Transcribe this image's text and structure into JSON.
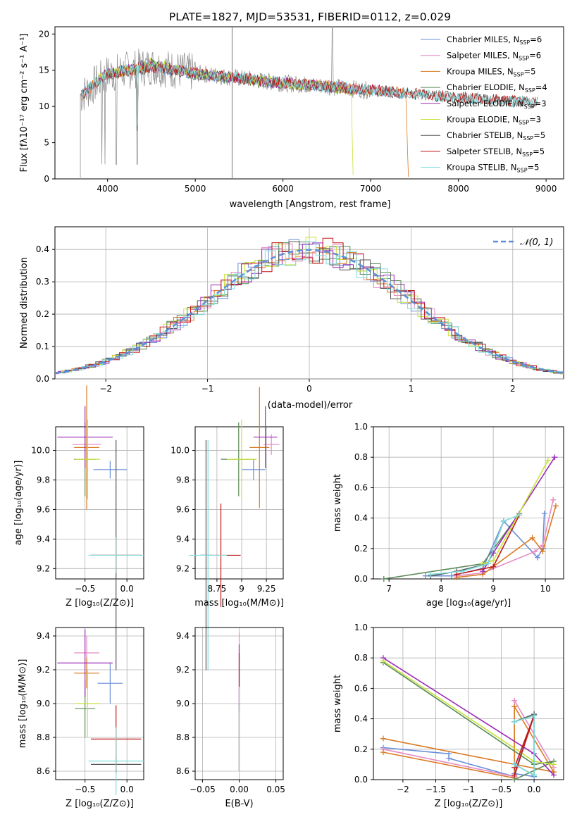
{
  "figure": {
    "title": "PLATE=1827, MJD=53531, FIBERID=0112, z=0.029"
  },
  "colors": {
    "Chabrier MILES": "#6a8fd8",
    "Salpeter MILES": "#e58ac4",
    "Kroupa MILES": "#d97a22",
    "Chabrier ELODIE": "#5a8a5a",
    "Salpeter ELODIE": "#9b2bb5",
    "Kroupa ELODIE": "#c8e23a",
    "Chabrier STELIB": "#555555",
    "Salpeter STELIB": "#c01818",
    "Kroupa STELIB": "#7fdede",
    "data": "#888888",
    "normal_curve": "#5a8fd8"
  },
  "chart_data": [
    {
      "id": "spectrum",
      "type": "line",
      "title": "PLATE=1827, MJD=53531, FIBERID=0112, z=0.029",
      "xlabel": "wavelength [Angstrom, rest frame]",
      "ylabel": "Flux [fλ10⁻¹⁷ erg cm⁻² s⁻¹ A⁻¹]",
      "xlim": [
        3400,
        9200
      ],
      "ylim": [
        0,
        21
      ],
      "xticks": [
        4000,
        5000,
        6000,
        7000,
        8000,
        9000
      ],
      "yticks": [
        0,
        5,
        10,
        15,
        20
      ],
      "grid": false,
      "legend": "top-right",
      "series": [
        {
          "name": "Chabrier MILES, N_SSP=6",
          "x": [
            3700,
            4000,
            4500,
            5000,
            5500,
            6000,
            6500,
            7000,
            7400
          ],
          "y": [
            11.5,
            14.5,
            15.5,
            14.5,
            13.8,
            13.2,
            12.8,
            12.2,
            11.8
          ]
        },
        {
          "name": "Salpeter MILES, N_SSP=6",
          "x": [
            3700,
            4000,
            4500,
            5000,
            5500,
            6000,
            6500,
            7000,
            7400
          ],
          "y": [
            11.4,
            14.6,
            15.6,
            14.6,
            13.9,
            13.3,
            12.9,
            12.3,
            11.9
          ]
        },
        {
          "name": "Kroupa MILES, N_SSP=5",
          "x": [
            3700,
            4000,
            4500,
            5000,
            5500,
            6000,
            6500,
            7000,
            7400,
            7430
          ],
          "y": [
            11.5,
            14.5,
            15.5,
            14.6,
            13.9,
            13.2,
            12.8,
            12.2,
            11.9,
            0
          ]
        },
        {
          "name": "Chabrier ELODIE, N_SSP=4",
          "x": [
            3900,
            4200,
            4500,
            5000,
            5500,
            6000,
            6500,
            6800
          ],
          "y": [
            14,
            15,
            15.8,
            14.4,
            13.7,
            13.1,
            12.7,
            12.3
          ]
        },
        {
          "name": "Salpeter ELODIE, N_SSP=3",
          "x": [
            3900,
            4200,
            4500,
            5000,
            5500,
            6000,
            6500,
            6800
          ],
          "y": [
            14.1,
            15.1,
            15.9,
            14.5,
            13.8,
            13.2,
            12.8,
            12.4
          ]
        },
        {
          "name": "Kroupa ELODIE, N_SSP=3",
          "x": [
            3900,
            4200,
            4500,
            5000,
            5500,
            6000,
            6500,
            6780,
            6800
          ],
          "y": [
            14,
            15,
            16,
            14.6,
            13.8,
            13.2,
            12.8,
            12.2,
            0
          ]
        },
        {
          "name": "Chabrier STELIB, N_SSP=5",
          "x": [
            3700,
            4000,
            4500,
            5000,
            6000,
            7000,
            8000,
            8500,
            8900
          ],
          "y": [
            11.6,
            14.4,
            15.4,
            14.5,
            13.2,
            12.2,
            11.2,
            10.8,
            10.6
          ]
        },
        {
          "name": "Salpeter STELIB, N_SSP=5",
          "x": [
            3700,
            4000,
            4500,
            5000,
            6000,
            7000,
            8000,
            8500,
            8900
          ],
          "y": [
            11.7,
            14.5,
            15.5,
            14.6,
            13.3,
            12.3,
            11.3,
            10.9,
            10.7
          ]
        },
        {
          "name": "Kroupa STELIB, N_SSP=5",
          "x": [
            3700,
            4000,
            4500,
            5000,
            6000,
            7000,
            8000,
            8500,
            8900
          ],
          "y": [
            11.8,
            14.6,
            15.6,
            14.7,
            13.3,
            12.3,
            11.2,
            10.8,
            10.5
          ]
        }
      ]
    },
    {
      "id": "residuals",
      "type": "line",
      "xlabel": "(data-model)/error",
      "ylabel": "Normed distribution",
      "xlim": [
        -2.5,
        2.5
      ],
      "ylim": [
        0,
        0.47
      ],
      "xticks": [
        -2,
        -1,
        0,
        1,
        2
      ],
      "yticks": [
        0.0,
        0.1,
        0.2,
        0.3,
        0.4
      ],
      "grid": true,
      "legend": "top-right",
      "legend_label": "𝒩(0, 1)",
      "normal": {
        "mean": 0,
        "sigma": 1
      }
    },
    {
      "id": "age_vs_Z",
      "type": "scatter",
      "xlabel": "Z [log₁₀(Z/Z⊙)]",
      "ylabel": "age  [log₁₀(age/yr)]",
      "xlim": [
        -0.85,
        0.2
      ],
      "ylim": [
        9.13,
        10.16
      ],
      "xticks": [
        -0.5,
        0.0
      ],
      "yticks": [
        9.2,
        9.4,
        9.6,
        9.8,
        10.0
      ],
      "grid": true,
      "points": [
        {
          "model": "Chabrier MILES",
          "x": -0.2,
          "xerr": 0.2,
          "y": 9.87,
          "yerr": 0.06
        },
        {
          "model": "Salpeter MILES",
          "x": -0.48,
          "xerr": 0.17,
          "y": 10.04,
          "yerr": 0.1
        },
        {
          "model": "Kroupa MILES",
          "x": -0.48,
          "xerr": 0.15,
          "y": 10.02,
          "yerr": 0.42
        },
        {
          "model": "Chabrier ELODIE",
          "x": -0.5,
          "xerr": 0.13,
          "y": 9.94,
          "yerr": 0.25
        },
        {
          "model": "Salpeter ELODIE",
          "x": -0.5,
          "xerr": 0.33,
          "y": 10.09,
          "yerr": 0.21
        },
        {
          "model": "Kroupa ELODIE",
          "x": -0.47,
          "xerr": 0.15,
          "y": 9.94,
          "yerr": 0.27
        },
        {
          "model": "Chabrier STELIB",
          "x": -0.13,
          "xerr": 0.3,
          "y": 9.29,
          "yerr": 0.78
        },
        {
          "model": "Salpeter STELIB",
          "x": -0.13,
          "xerr": 0.3,
          "y": 9.29,
          "yerr": 0.12
        },
        {
          "model": "Kroupa STELIB",
          "x": -0.13,
          "xerr": 0.33,
          "y": 9.29,
          "yerr": 0.12
        }
      ]
    },
    {
      "id": "age_vs_mass",
      "type": "scatter",
      "xlabel": "mass [log₁₀(M/M⊙)]",
      "ylabel": "",
      "xlim": [
        8.53,
        9.42
      ],
      "ylim": [
        9.13,
        10.16
      ],
      "xticks": [
        8.75,
        9.0,
        9.25
      ],
      "yticks": [
        9.2,
        9.4,
        9.6,
        9.8,
        10.0
      ],
      "grid": true,
      "points": [
        {
          "model": "Chabrier MILES",
          "x": 9.12,
          "xerr": 0.12,
          "y": 9.87,
          "yerr": 0.07
        },
        {
          "model": "Salpeter MILES",
          "x": 9.3,
          "xerr": 0.08,
          "y": 10.04,
          "yerr": 0.07
        },
        {
          "model": "Kroupa MILES",
          "x": 9.18,
          "xerr": 0.1,
          "y": 10.02,
          "yerr": 0.41
        },
        {
          "model": "Chabrier ELODIE",
          "x": 8.97,
          "xerr": 0.18,
          "y": 9.94,
          "yerr": 0.25
        },
        {
          "model": "Salpeter ELODIE",
          "x": 9.24,
          "xerr": 0.12,
          "y": 10.09,
          "yerr": 0.21
        },
        {
          "model": "Kroupa ELODIE",
          "x": 9.0,
          "xerr": 0.15,
          "y": 9.94,
          "yerr": 0.27
        },
        {
          "model": "Chabrier STELIB",
          "x": 8.64,
          "xerr": 0.06,
          "y": 9.29,
          "yerr": 0.78
        },
        {
          "model": "Salpeter STELIB",
          "x": 8.79,
          "xerr": 0.2,
          "y": 9.29,
          "yerr": 0.35
        },
        {
          "model": "Kroupa STELIB",
          "x": 8.66,
          "xerr": 0.19,
          "y": 9.29,
          "yerr": 0.78
        }
      ]
    },
    {
      "id": "massweight_vs_age",
      "type": "line",
      "xlabel": "age  [log₁₀(age/yr)]",
      "ylabel": "mass weight",
      "xlim": [
        6.7,
        10.35
      ],
      "ylim": [
        0,
        1
      ],
      "xticks": [
        7,
        8,
        9,
        10
      ],
      "yticks": [
        0.0,
        0.2,
        0.4,
        0.6,
        0.8,
        1.0
      ],
      "grid": true,
      "series": [
        {
          "model": "Chabrier MILES",
          "x": [
            7.7,
            8.2,
            8.8,
            9.2,
            9.85,
            9.95,
            9.98
          ],
          "y": [
            0.02,
            0.02,
            0.07,
            0.38,
            0.14,
            0.2,
            0.43
          ]
        },
        {
          "model": "Salpeter MILES",
          "x": [
            8.3,
            8.8,
            9.8,
            9.95,
            10.15
          ],
          "y": [
            0.02,
            0.04,
            0.18,
            0.22,
            0.52
          ]
        },
        {
          "model": "Kroupa MILES",
          "x": [
            8.3,
            8.8,
            9.75,
            9.95,
            10.2
          ],
          "y": [
            0.01,
            0.03,
            0.27,
            0.18,
            0.48
          ]
        },
        {
          "model": "Chabrier ELODIE",
          "x": [
            6.9,
            8.8,
            9.5
          ],
          "y": [
            0.0,
            0.1,
            0.43
          ]
        },
        {
          "model": "Salpeter ELODIE",
          "x": [
            8.8,
            9.0,
            10.18
          ],
          "y": [
            0.05,
            0.17,
            0.8
          ]
        },
        {
          "model": "Kroupa ELODIE",
          "x": [
            8.8,
            9.0,
            10.05
          ],
          "y": [
            0.1,
            0.12,
            0.78
          ]
        },
        {
          "model": "Chabrier STELIB",
          "x": [
            7.8,
            8.3,
            8.9,
            9.2
          ],
          "y": [
            0.02,
            0.05,
            0.1,
            0.38
          ]
        },
        {
          "model": "Salpeter STELIB",
          "x": [
            8.3,
            9.0,
            9.5
          ],
          "y": [
            0.03,
            0.08,
            0.42
          ]
        },
        {
          "model": "Kroupa STELIB",
          "x": [
            7.8,
            8.4,
            8.9,
            9.2,
            9.5
          ],
          "y": [
            0.03,
            0.05,
            0.1,
            0.38,
            0.42
          ]
        }
      ]
    },
    {
      "id": "mass_vs_Z",
      "type": "scatter",
      "xlabel": "Z [log₁₀(Z/Z⊙)]",
      "ylabel": "mass [log₁₀(M/M⊙)]",
      "xlim": [
        -0.85,
        0.2
      ],
      "ylim": [
        8.55,
        9.45
      ],
      "xticks": [
        -0.5,
        0.0
      ],
      "yticks": [
        8.6,
        8.8,
        9.0,
        9.2,
        9.4
      ],
      "grid": true,
      "points": [
        {
          "model": "Chabrier MILES",
          "x": -0.2,
          "xerr": 0.15,
          "y": 9.12,
          "yerr": 0.12
        },
        {
          "model": "Salpeter MILES",
          "x": -0.48,
          "xerr": 0.15,
          "y": 9.3,
          "yerr": 0.1
        },
        {
          "model": "Kroupa MILES",
          "x": -0.48,
          "xerr": 0.15,
          "y": 9.18,
          "yerr": 0.09
        },
        {
          "model": "Chabrier ELODIE",
          "x": -0.5,
          "xerr": 0.12,
          "y": 8.97,
          "yerr": 0.17
        },
        {
          "model": "Salpeter ELODIE",
          "x": -0.5,
          "xerr": 0.33,
          "y": 9.24,
          "yerr": 0.2
        },
        {
          "model": "Kroupa ELODIE",
          "x": -0.47,
          "xerr": 0.15,
          "y": 9.0,
          "yerr": 0.2
        },
        {
          "model": "Chabrier STELIB",
          "x": -0.13,
          "xerr": 0.3,
          "y": 8.64,
          "yerr": 0.05
        },
        {
          "model": "Salpeter STELIB",
          "x": -0.13,
          "xerr": 0.3,
          "y": 8.79,
          "yerr": 0.2
        },
        {
          "model": "Kroupa STELIB",
          "x": -0.13,
          "xerr": 0.33,
          "y": 8.66,
          "yerr": 0.2
        }
      ]
    },
    {
      "id": "mass_vs_EBV",
      "type": "scatter",
      "xlabel": "E(B-V)",
      "ylabel": "",
      "xlim": [
        -0.06,
        0.06
      ],
      "ylim": [
        8.55,
        9.45
      ],
      "xticks": [
        -0.05,
        0.0,
        0.05
      ],
      "yticks": [
        8.6,
        8.8,
        9.0,
        9.2,
        9.4
      ],
      "grid": true,
      "points": [
        {
          "model": "Salpeter MILES",
          "x": 0.0,
          "y": 9.2,
          "yerr": 0.22
        },
        {
          "model": "Salpeter ELODIE",
          "x": 0.0,
          "y": 9.15,
          "yerr": 0.2
        },
        {
          "model": "Salpeter STELIB",
          "x": 0.0,
          "y": 8.95,
          "yerr": 0.35
        },
        {
          "model": "Chabrier STELIB",
          "x": 0.0,
          "y": 8.8,
          "yerr": 0.2
        },
        {
          "model": "Kroupa STELIB",
          "x": 0.0,
          "y": 8.85,
          "yerr": 0.25
        }
      ]
    },
    {
      "id": "massweight_vs_Z",
      "type": "line",
      "xlabel": "Z [log₁₀(Z/Z⊙)]",
      "ylabel": "mass weight",
      "xlim": [
        -2.45,
        0.45
      ],
      "ylim": [
        0,
        1
      ],
      "xticks": [
        -2.0,
        -1.5,
        -1.0,
        -0.5,
        0.0
      ],
      "yticks": [
        0.0,
        0.2,
        0.4,
        0.6,
        0.8,
        1.0
      ],
      "grid": true,
      "series": [
        {
          "model": "Chabrier MILES",
          "x": [
            -2.3,
            -1.3,
            -1.3,
            -0.3,
            0.0,
            -0.3,
            0.0
          ],
          "y": [
            0.21,
            0.17,
            0.14,
            0.02,
            0.43,
            0.04,
            0.02
          ]
        },
        {
          "model": "Salpeter MILES",
          "x": [
            -2.3,
            -0.3,
            -0.3,
            0.3
          ],
          "y": [
            0.2,
            0.02,
            0.52,
            0.08
          ]
        },
        {
          "model": "Kroupa MILES",
          "x": [
            -2.3,
            -0.3,
            -0.3,
            0.3,
            -2.3
          ],
          "y": [
            0.18,
            0.01,
            0.48,
            0.05,
            0.27
          ]
        },
        {
          "model": "Chabrier ELODIE",
          "x": [
            -2.3,
            0.0,
            0.3,
            -0.3
          ],
          "y": [
            0.77,
            0.1,
            0.12,
            0.0
          ]
        },
        {
          "model": "Salpeter ELODIE",
          "x": [
            -2.3,
            0.0,
            0.3
          ],
          "y": [
            0.8,
            0.17,
            0.03
          ]
        },
        {
          "model": "Kroupa ELODIE",
          "x": [
            -2.3,
            0.0,
            0.3
          ],
          "y": [
            0.78,
            0.12,
            0.1
          ]
        },
        {
          "model": "Chabrier STELIB",
          "x": [
            -0.3,
            0.0,
            0.0,
            -0.3
          ],
          "y": [
            0.1,
            0.03,
            0.43,
            0.38
          ]
        },
        {
          "model": "Salpeter STELIB",
          "x": [
            -0.3,
            0.0,
            -0.3
          ],
          "y": [
            0.08,
            0.42,
            0.03
          ]
        },
        {
          "model": "Kroupa STELIB",
          "x": [
            -0.3,
            0.0,
            0.0,
            -0.3
          ],
          "y": [
            0.38,
            0.42,
            0.03,
            0.1
          ]
        }
      ]
    }
  ]
}
